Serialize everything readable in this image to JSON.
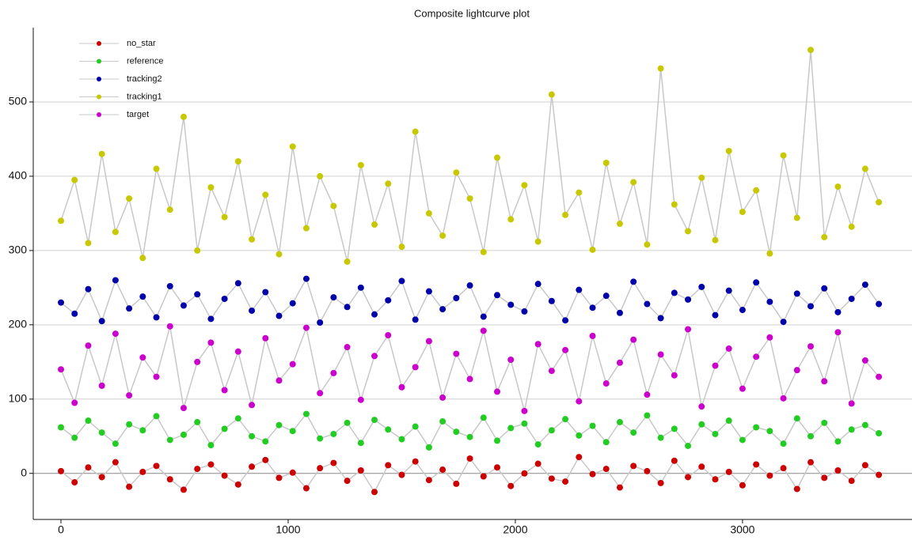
{
  "chart_data": {
    "type": "line",
    "title": "Composite lightcurve plot",
    "x": [
      0,
      60,
      120,
      180,
      240,
      300,
      360,
      420,
      480,
      540,
      600,
      660,
      720,
      780,
      840,
      900,
      960,
      1020,
      1080,
      1140,
      1200,
      1260,
      1320,
      1380,
      1440,
      1500,
      1560,
      1620,
      1680,
      1740,
      1800,
      1860,
      1920,
      1980,
      2040,
      2100,
      2160,
      2220,
      2280,
      2340,
      2400,
      2460,
      2520,
      2580,
      2640,
      2700,
      2760,
      2820,
      2880,
      2940,
      3000,
      3060,
      3120,
      3180,
      3240,
      3300,
      3360,
      3420,
      3480,
      3540,
      3600
    ],
    "series": [
      {
        "name": "no_star",
        "color": "#cc0000",
        "values": [
          3,
          -12,
          8,
          -5,
          15,
          -18,
          2,
          10,
          -8,
          -22,
          6,
          12,
          -3,
          -15,
          9,
          18,
          -6,
          1,
          -20,
          7,
          14,
          -10,
          4,
          -25,
          11,
          -2,
          16,
          -9,
          5,
          -14,
          20,
          -4,
          8,
          -17,
          0,
          13,
          -7,
          -11,
          22,
          -1,
          6,
          -19,
          10,
          3,
          -13,
          17,
          -5,
          9,
          -8,
          2,
          -16,
          12,
          -3,
          7,
          -21,
          15,
          -6,
          4,
          -10,
          11,
          -2
        ]
      },
      {
        "name": "reference",
        "color": "#22cc22",
        "values": [
          62,
          48,
          71,
          55,
          40,
          66,
          58,
          77,
          45,
          52,
          69,
          38,
          60,
          74,
          50,
          43,
          65,
          57,
          80,
          47,
          53,
          68,
          41,
          72,
          59,
          46,
          63,
          35,
          70,
          56,
          49,
          75,
          44,
          61,
          67,
          39,
          58,
          73,
          51,
          64,
          42,
          69,
          55,
          78,
          48,
          60,
          37,
          66,
          53,
          71,
          45,
          62,
          57,
          40,
          74,
          50,
          68,
          43,
          59,
          65,
          54
        ]
      },
      {
        "name": "tracking2",
        "color": "#0000aa",
        "values": [
          230,
          215,
          248,
          205,
          260,
          222,
          238,
          210,
          252,
          226,
          241,
          208,
          235,
          256,
          219,
          244,
          212,
          229,
          262,
          203,
          237,
          224,
          250,
          214,
          233,
          259,
          207,
          245,
          221,
          236,
          253,
          211,
          240,
          227,
          218,
          255,
          232,
          206,
          247,
          223,
          239,
          216,
          258,
          228,
          209,
          243,
          234,
          251,
          213,
          246,
          220,
          257,
          231,
          204,
          242,
          225,
          249,
          217,
          235,
          254,
          228
        ]
      },
      {
        "name": "tracking1",
        "color": "#c8c800",
        "values": [
          340,
          395,
          310,
          430,
          325,
          370,
          290,
          410,
          355,
          480,
          300,
          385,
          345,
          420,
          315,
          375,
          295,
          440,
          330,
          400,
          360,
          285,
          415,
          335,
          390,
          305,
          460,
          350,
          320,
          405,
          370,
          298,
          425,
          342,
          388,
          312,
          510,
          348,
          378,
          301,
          418,
          336,
          392,
          308,
          545,
          362,
          326,
          398,
          314,
          434,
          352,
          381,
          296,
          428,
          344,
          570,
          318,
          386,
          332,
          410,
          365
        ]
      },
      {
        "name": "target",
        "color": "#cc00cc",
        "values": [
          140,
          95,
          172,
          118,
          188,
          105,
          156,
          130,
          198,
          88,
          150,
          176,
          112,
          164,
          92,
          182,
          125,
          147,
          196,
          108,
          135,
          170,
          99,
          158,
          186,
          116,
          143,
          178,
          102,
          161,
          127,
          192,
          110,
          153,
          84,
          174,
          138,
          166,
          97,
          185,
          121,
          149,
          180,
          106,
          160,
          132,
          194,
          90,
          145,
          168,
          114,
          157,
          183,
          101,
          139,
          171,
          124,
          190,
          94,
          152,
          130
        ]
      }
    ],
    "xlim": [
      -122,
      3746
    ],
    "ylim": [
      -62,
      600
    ],
    "xticks": [
      0,
      1000,
      2000,
      3000
    ],
    "yticks": [
      0,
      100,
      200,
      300,
      400,
      500
    ],
    "grid": true,
    "legend": "upper left"
  }
}
